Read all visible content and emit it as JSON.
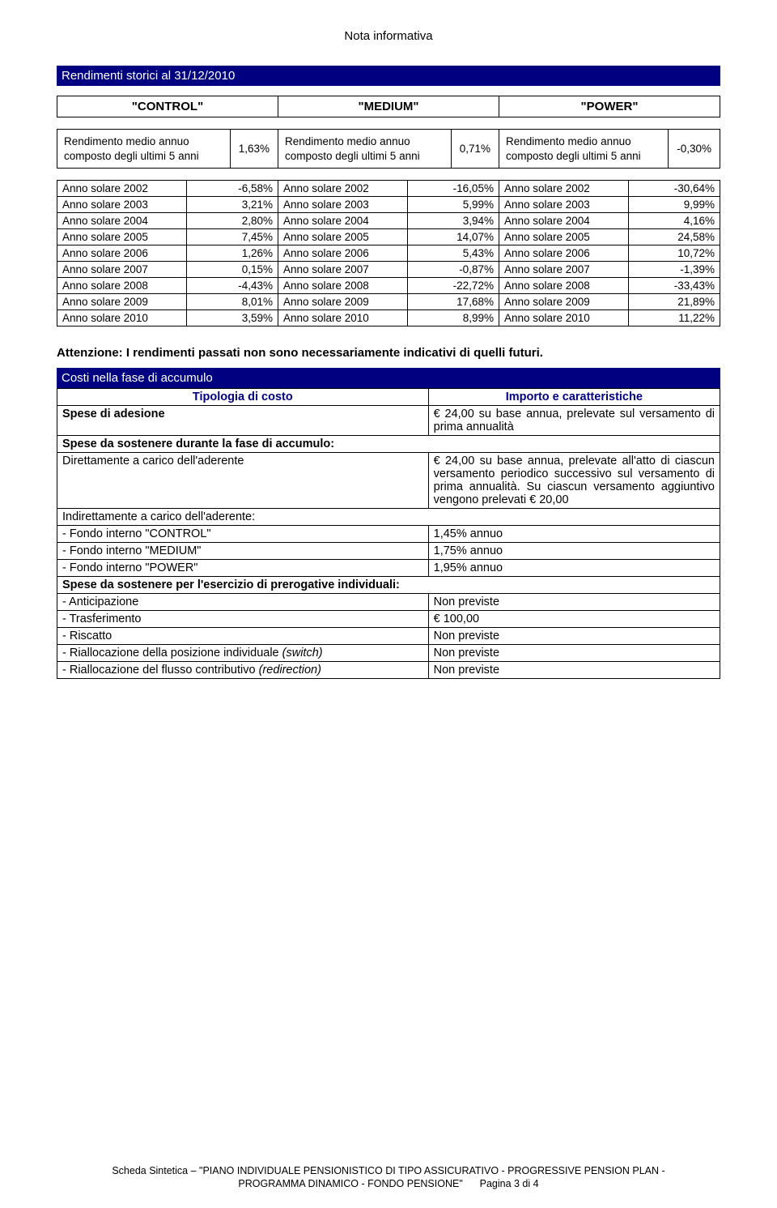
{
  "header": "Nota informativa",
  "section1_title": "Rendimenti storici al 31/12/2010",
  "compartments": {
    "control": "\"CONTROL\"",
    "medium": "\"MEDIUM\"",
    "power": "\"POWER\""
  },
  "rendimento_label": "Rendimento medio annuo composto degli ultimi 5 anni",
  "rendimento_values": {
    "control": "1,63%",
    "medium": "0,71%",
    "power": "-0,30%"
  },
  "anni": [
    {
      "y": "2002",
      "c": "-6,58%",
      "m": "-16,05%",
      "p": "-30,64%"
    },
    {
      "y": "2003",
      "c": "3,21%",
      "m": "5,99%",
      "p": "9,99%"
    },
    {
      "y": "2004",
      "c": "2,80%",
      "m": "3,94%",
      "p": "4,16%"
    },
    {
      "y": "2005",
      "c": "7,45%",
      "m": "14,07%",
      "p": "24,58%"
    },
    {
      "y": "2006",
      "c": "1,26%",
      "m": "5,43%",
      "p": "10,72%"
    },
    {
      "y": "2007",
      "c": "0,15%",
      "m": "-0,87%",
      "p": "-1,39%"
    },
    {
      "y": "2008",
      "c": "-4,43%",
      "m": "-22,72%",
      "p": "-33,43%"
    },
    {
      "y": "2009",
      "c": "8,01%",
      "m": "17,68%",
      "p": "21,89%"
    },
    {
      "y": "2010",
      "c": "3,59%",
      "m": "8,99%",
      "p": "11,22%"
    }
  ],
  "anno_prefix": "Anno solare ",
  "attenzione": "Attenzione: I rendimenti passati non sono necessariamente indicativi di quelli futuri.",
  "section2_title": "Costi nella fase di accumulo",
  "costi_th_left": "Tipologia di costo",
  "costi_th_right": "Importo e caratteristiche",
  "costi_rows": [
    {
      "l": "Spese di adesione",
      "lb": true,
      "r": "€ 24,00 su base annua, prelevate sul versamento di prima annualità"
    },
    {
      "l": "Spese da sostenere durante la fase di accumulo:",
      "lb": true,
      "span": true
    },
    {
      "l": "Direttamente a carico dell'aderente",
      "r": "€ 24,00 su base annua, prelevate all'atto di ciascun versamento periodico successivo sul versamento di prima annualità. Su ciascun versamento aggiuntivo vengono prelevati € 20,00"
    },
    {
      "l": "Indirettamente a carico dell'aderente:",
      "span": true
    },
    {
      "l": "- Fondo interno \"CONTROL\"",
      "r": "1,45% annuo"
    },
    {
      "l": "- Fondo interno \"MEDIUM\"",
      "r": "1,75% annuo"
    },
    {
      "l": "- Fondo interno \"POWER\"",
      "r": "1,95% annuo"
    },
    {
      "l": "Spese da sostenere per l'esercizio di prerogative individuali:",
      "lb": true,
      "span": true
    },
    {
      "l": "- Anticipazione",
      "r": "Non previste"
    },
    {
      "l": "- Trasferimento",
      "r": "€ 100,00"
    },
    {
      "l": "- Riscatto",
      "r": "Non previste"
    },
    {
      "l": "- Riallocazione della posizione individuale (switch)",
      "i": true,
      "r": "Non previste"
    },
    {
      "l": "- Riallocazione del flusso contributivo (redirection)",
      "i": true,
      "r": "Non previste"
    }
  ],
  "footer_line1": "Scheda Sintetica – \"PIANO INDIVIDUALE PENSIONISTICO DI TIPO ASSICURATIVO - PROGRESSIVE PENSION PLAN -",
  "footer_line2": "PROGRAMMA DINAMICO - FONDO PENSIONE\"",
  "footer_page": "Pagina 3 di 4",
  "colors": {
    "navy": "#000080"
  }
}
